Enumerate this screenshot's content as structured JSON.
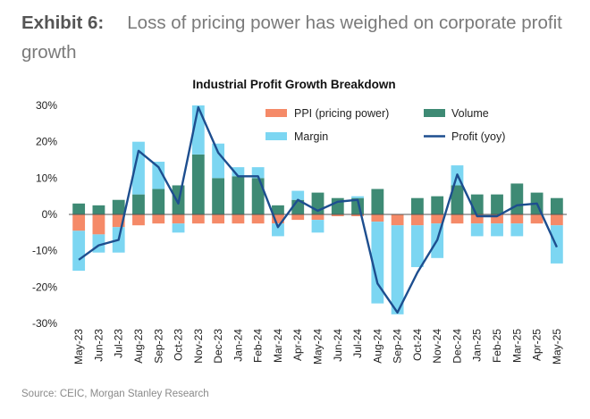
{
  "header": {
    "exhibit_label": "Exhibit 6:",
    "exhibit_title": "Loss of pricing power has weighed on corporate profit growth"
  },
  "footer": {
    "source": "Source: CEIC, Morgan Stanley Research"
  },
  "colors": {
    "ppi": "#F58A68",
    "volume": "#3E8A74",
    "margin": "#7CD6F2",
    "profit": "#1D4E8F"
  },
  "chart_data": {
    "type": "bar",
    "title": "Industrial Profit Growth Breakdown",
    "xlabel": "",
    "ylabel": "",
    "ylim": [
      -30,
      30
    ],
    "yticks": [
      30,
      20,
      10,
      0,
      -10,
      -20,
      -30
    ],
    "ytick_labels": [
      "30%",
      "20%",
      "10%",
      "0%",
      "-10%",
      "-20%",
      "-30%"
    ],
    "categories": [
      "May-23",
      "Jun-23",
      "Jul-23",
      "Aug-23",
      "Sep-23",
      "Oct-23",
      "Nov-23",
      "Dec-23",
      "Jan-24",
      "Feb-24",
      "Mar-24",
      "Apr-24",
      "May-24",
      "Jun-24",
      "Jul-24",
      "Aug-24",
      "Sep-24",
      "Oct-24",
      "Nov-24",
      "Dec-24",
      "Jan-25",
      "Feb-25",
      "Mar-25",
      "Apr-25",
      "May-25"
    ],
    "series": [
      {
        "name": "PPI (pricing power)",
        "kind": "stacked-bar",
        "values": [
          -4.5,
          -5.5,
          -3.5,
          -3,
          -2.5,
          -2.5,
          -2.5,
          -2.5,
          -2.5,
          -2.5,
          -2.5,
          -1.5,
          -1.5,
          -0.5,
          -0.5,
          -2,
          -3,
          -3,
          -2.5,
          -2.5,
          -2.5,
          -2.5,
          -2.5,
          -2.5,
          -3
        ]
      },
      {
        "name": "Volume",
        "kind": "stacked-bar",
        "values": [
          3,
          2.5,
          4,
          5.5,
          7,
          8,
          16.5,
          10,
          10.5,
          10,
          2.5,
          4,
          6,
          4.5,
          4.5,
          7,
          0,
          4.5,
          5,
          8,
          5.5,
          5.5,
          8.5,
          6,
          4.5
        ]
      },
      {
        "name": "Margin",
        "kind": "stacked-bar",
        "values": [
          -11,
          -5,
          -7,
          14.5,
          7.5,
          -2.5,
          13.5,
          9.5,
          2.5,
          3,
          -3.5,
          2.5,
          -3.5,
          0,
          0.5,
          -22.5,
          -24.5,
          -11.5,
          -9.5,
          5.5,
          -3.5,
          -3.5,
          -3.5,
          0,
          -10.5
        ]
      },
      {
        "name": "Profit (yoy)",
        "kind": "line",
        "values": [
          -12.5,
          -8.5,
          -7,
          17.5,
          13,
          3,
          29.5,
          17,
          10.5,
          10.5,
          -3.5,
          4,
          1,
          3.5,
          4,
          -19,
          -27,
          -16,
          -7,
          11,
          -0.5,
          -0.5,
          2.5,
          3,
          -9
        ]
      }
    ],
    "legend": {
      "position": "top-right",
      "items": [
        "PPI (pricing power)",
        "Volume",
        "Margin",
        "Profit (yoy)"
      ]
    }
  }
}
